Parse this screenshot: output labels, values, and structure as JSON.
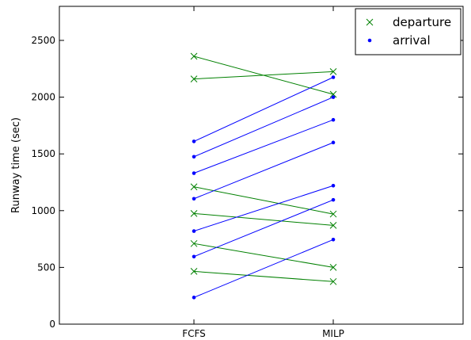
{
  "chart_data": {
    "type": "line",
    "categories": [
      "FCFS",
      "MILP"
    ],
    "ylabel": "Runway time (sec)",
    "xlabel": "",
    "ylim": [
      0,
      2800
    ],
    "yticks": [
      0,
      500,
      1000,
      1500,
      2000,
      2500
    ],
    "grid": false,
    "legend_position": "top-right",
    "series": [
      {
        "name": "departure",
        "color": "#008000",
        "marker": "x",
        "pairs": [
          [
            2360,
            2025
          ],
          [
            2160,
            2225
          ],
          [
            1210,
            970
          ],
          [
            975,
            870
          ],
          [
            710,
            500
          ],
          [
            465,
            375
          ]
        ]
      },
      {
        "name": "arrival",
        "color": "#0000ff",
        "marker": "dot",
        "pairs": [
          [
            1610,
            2175
          ],
          [
            1475,
            2000
          ],
          [
            1330,
            1800
          ],
          [
            1105,
            1600
          ],
          [
            820,
            1220
          ],
          [
            595,
            1095
          ],
          [
            235,
            745
          ]
        ]
      }
    ]
  }
}
